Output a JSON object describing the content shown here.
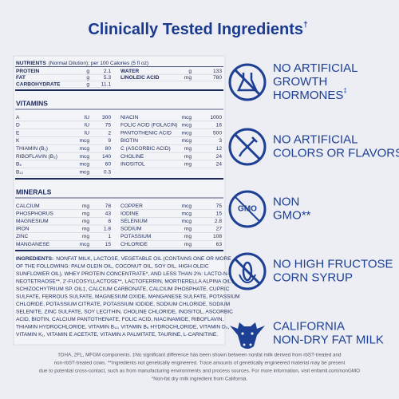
{
  "title": "Clinically Tested Ingredients",
  "title_mark": "†",
  "nutrients": {
    "heading": "NUTRIENTS",
    "heading_note": "(Normal Dilution); per 100 Calories (5 fl oz)",
    "left": [
      {
        "name": "PROTEIN",
        "unit": "g",
        "value": 2.1
      },
      {
        "name": "FAT",
        "unit": "g",
        "value": 5.3
      },
      {
        "name": "CARBOHYDRATE",
        "unit": "g",
        "value": 11.1
      }
    ],
    "right": [
      {
        "name": "WATER",
        "unit": "g",
        "value": 133
      },
      {
        "name": "LINOLEIC ACID",
        "unit": "mg",
        "value": 780
      }
    ]
  },
  "vitamins": {
    "heading": "VITAMINS",
    "left": [
      {
        "name": "A",
        "unit": "IU",
        "value": 300
      },
      {
        "name": "D",
        "unit": "IU",
        "value": 75
      },
      {
        "name": "E",
        "unit": "IU",
        "value": 2
      },
      {
        "name": "K",
        "unit": "mcg",
        "value": 9
      },
      {
        "name": "THIAMIN (B₁)",
        "unit": "mcg",
        "value": 80
      },
      {
        "name": "RIBOFLAVIN (B₂)",
        "unit": "mcg",
        "value": 140
      },
      {
        "name": "B₆",
        "unit": "mcg",
        "value": 60
      },
      {
        "name": "B₁₂",
        "unit": "mcg",
        "value": 0.3
      }
    ],
    "right": [
      {
        "name": "NIACIN",
        "unit": "mcg",
        "value": 1000
      },
      {
        "name": "FOLIC ACID (FOLACIN)",
        "unit": "mcg",
        "value": 16
      },
      {
        "name": "PANTOTHENIC ACID",
        "unit": "mcg",
        "value": 500
      },
      {
        "name": "BIOTIN",
        "unit": "mcg",
        "value": 3
      },
      {
        "name": "C (ASCORBIC ACID)",
        "unit": "mg",
        "value": 12
      },
      {
        "name": "CHOLINE",
        "unit": "mg",
        "value": 24
      },
      {
        "name": "INOSITOL",
        "unit": "mg",
        "value": 24
      }
    ]
  },
  "minerals": {
    "heading": "MINERALS",
    "left": [
      {
        "name": "CALCIUM",
        "unit": "mg",
        "value": 78
      },
      {
        "name": "PHOSPHORUS",
        "unit": "mg",
        "value": 43
      },
      {
        "name": "MAGNESIUM",
        "unit": "mg",
        "value": 8
      },
      {
        "name": "IRON",
        "unit": "mg",
        "value": 1.8
      },
      {
        "name": "ZINC",
        "unit": "mg",
        "value": 1
      },
      {
        "name": "MANGANESE",
        "unit": "mcg",
        "value": 15
      }
    ],
    "right": [
      {
        "name": "COPPER",
        "unit": "mcg",
        "value": 75
      },
      {
        "name": "IODINE",
        "unit": "mcg",
        "value": 15
      },
      {
        "name": "SELENIUM",
        "unit": "mcg",
        "value": 2.8
      },
      {
        "name": "SODIUM",
        "unit": "mg",
        "value": 27
      },
      {
        "name": "POTASSIUM",
        "unit": "mg",
        "value": 108
      },
      {
        "name": "CHLORIDE",
        "unit": "mg",
        "value": 63
      }
    ]
  },
  "ingredients": {
    "label": "INGREDIENTS:",
    "lines": [
      "NONFAT MILK, LACTOSE, VEGETABLE OIL (CONTAINS ONE OR MORE",
      "OF THE FOLLOWING: PALM OLEIN OIL, COCONUT OIL, SOY OIL, HIGH OLEIC",
      "SUNFLOWER OIL), WHEY PROTEIN CONCENTRATE*, AND LESS THAN 2%: LACTO-N-",
      "NEOTETRAOSE**, 2'-FUCOSYLLACTOSE**, LACTOFERRIN, MORTIERELLA ALPINA OIL†,",
      "SCHIZOCHYTRIUM SP. OIL‡, CALCIUM CARBONATE, CALCIUM PHOSPHATE, CUPRIC",
      "SULFATE, FERROUS SULFATE, MAGNESIUM OXIDE, MANGANESE SULFATE, POTASSIUM",
      "CHLORIDE, POTASSIUM CITRATE, POTASSIUM IODIDE, SODIUM CHLORIDE, SODIUM",
      "SELENITE, ZINC SULFATE, SOY LECITHIN, CHOLINE CHLORIDE, INOSITOL, ASCORBIC",
      "ACID, BIOTIN, CALCIUM PANTOTHENATE, FOLIC ACID, NIACINAMIDE, RIBOFLAVIN,",
      "THIAMIN HYDROCHLORIDE, VITAMIN B₁₂, VITAMIN B₆ HYDROCHLORIDE, VITAMIN D₃,",
      "VITAMIN K₁, VITAMIN E ACETATE, VITAMIN A PALMITATE, TAURINE, L-CARNITINE."
    ]
  },
  "claims": [
    {
      "lines": [
        "NO ARTIFICIAL",
        "GROWTH",
        "HORMONES"
      ],
      "mark": "‡"
    },
    {
      "lines": [
        "NO ARTIFICIAL",
        "COLORS OR FLAVORS"
      ]
    },
    {
      "lines": [
        "NON",
        "GMO**"
      ],
      "icon_text": "GMO"
    },
    {
      "lines": [
        "NO HIGH FRUCTOSE",
        "CORN SYRUP"
      ]
    },
    {
      "lines": [
        "CALIFORNIA",
        "NON-DRY FAT MILK"
      ]
    }
  ],
  "footnotes": [
    "†DHA, 2FL, MFGM components. ‡No significant difference has been shown between nonfat milk derived from rbST-treated and",
    "non-rbST-treated cows. **Ingredients not genetically engineered. Trace amounts of genetically engineered material may be present",
    "due to potential cross-contact, such as from manufacturing environments and process sources. For more information, visit enfamil.com/nonGMO",
    "°Non-fat dry milk ingredient from California."
  ]
}
